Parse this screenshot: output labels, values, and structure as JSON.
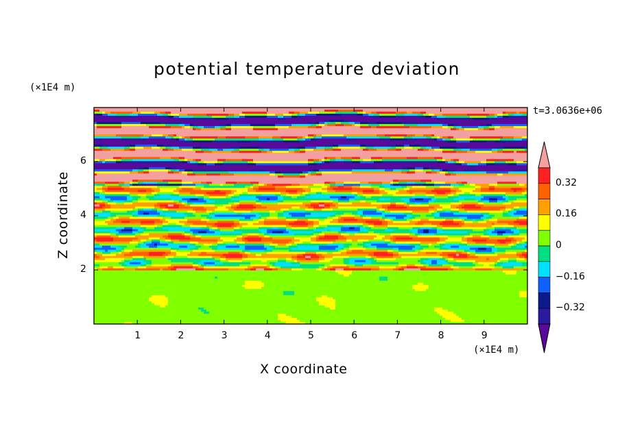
{
  "chart_data": {
    "type": "heatmap",
    "title": "potential temperature deviation",
    "xlabel": "X coordinate",
    "ylabel": "Z coordinate",
    "x_unit": "(×1E4 m)",
    "y_unit": "(×1E4 m)",
    "time_label": "t=3.0636e+06",
    "xlim": [
      0,
      10
    ],
    "ylim": [
      0,
      8
    ],
    "x_ticks": [
      "1",
      "2",
      "3",
      "4",
      "5",
      "6",
      "7",
      "8",
      "9"
    ],
    "y_ticks": [
      "2",
      "4",
      "6"
    ],
    "colorbar": {
      "labels": [
        "0.32",
        "0.16",
        "0",
        "-0.16",
        "-0.32"
      ],
      "levels": [
        -0.4,
        -0.32,
        -0.24,
        -0.16,
        -0.08,
        0,
        0.08,
        0.16,
        0.24,
        0.32,
        0.4
      ],
      "colors": [
        "#5a0a9a",
        "#2a1aa0",
        "#0a1a8a",
        "#1060ff",
        "#00e0ff",
        "#00e080",
        "#80ff00",
        "#ffff00",
        "#ffa000",
        "#ff6000",
        "#ff2020",
        "#f4a0a0"
      ],
      "extend": "both"
    },
    "layers": [
      {
        "z_range": [
          0,
          2
        ],
        "pattern": "smooth near-zero field (0 to 0.08) with rolling eddies of slightly negative values"
      },
      {
        "z_range": [
          2,
          5
        ],
        "pattern": "stacked thin horizontal layers alternating cyan, green, yellow, orange and blue (about -0.2 to 0.35)"
      },
      {
        "z_range": [
          5,
          8
        ],
        "pattern": "strong alternating layers of very positive (pink, >0.4) and very negative (purple, < -0.4) values"
      }
    ]
  }
}
